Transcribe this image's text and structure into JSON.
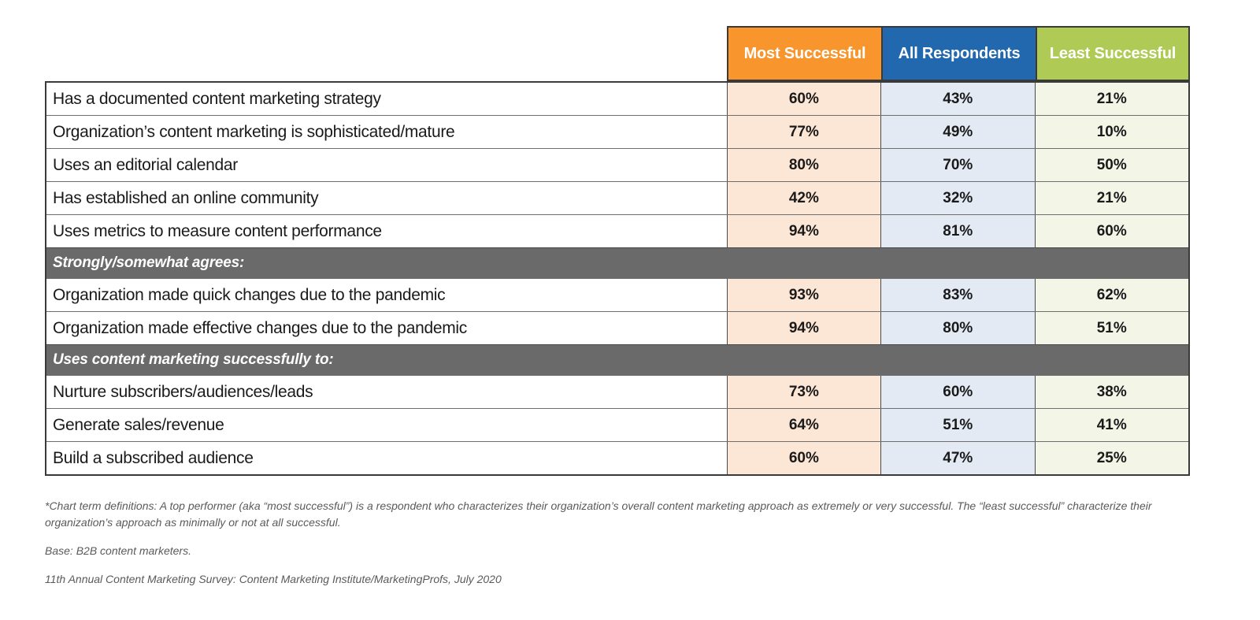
{
  "colors": {
    "header_orange": "#F8952D",
    "header_blue": "#2268AE",
    "header_green": "#AFCB56",
    "cell_orange_tint": "#FCE6D5",
    "cell_blue_tint": "#E3EAF4",
    "cell_green_tint": "#F3F5E7",
    "section_band_gray": "#6A6A6A"
  },
  "table": {
    "columns": [
      "Most Successful",
      "All Respondents",
      "Least Successful"
    ],
    "rows": [
      {
        "type": "data",
        "label": "Has a documented content marketing strategy",
        "values": [
          "60%",
          "43%",
          "21%"
        ]
      },
      {
        "type": "data",
        "label": "Organization’s content marketing is sophisticated/mature",
        "values": [
          "77%",
          "49%",
          "10%"
        ]
      },
      {
        "type": "data",
        "label": "Uses an editorial calendar",
        "values": [
          "80%",
          "70%",
          "50%"
        ]
      },
      {
        "type": "data",
        "label": "Has established an online community",
        "values": [
          "42%",
          "32%",
          "21%"
        ]
      },
      {
        "type": "data",
        "label": "Uses metrics to measure content performance",
        "values": [
          "94%",
          "81%",
          "60%"
        ]
      },
      {
        "type": "section",
        "label": "Strongly/somewhat agrees:"
      },
      {
        "type": "data",
        "label": "Organization made quick changes due to the pandemic",
        "values": [
          "93%",
          "83%",
          "62%"
        ]
      },
      {
        "type": "data",
        "label": "Organization made effective changes due to the pandemic",
        "values": [
          "94%",
          "80%",
          "51%"
        ]
      },
      {
        "type": "section",
        "label": "Uses content marketing successfully to:"
      },
      {
        "type": "data",
        "label": "Nurture subscribers/audiences/leads",
        "values": [
          "73%",
          "60%",
          "38%"
        ]
      },
      {
        "type": "data",
        "label": "Generate sales/revenue",
        "values": [
          "64%",
          "51%",
          "41%"
        ]
      },
      {
        "type": "data",
        "label": "Build a subscribed audience",
        "values": [
          "60%",
          "47%",
          "25%"
        ]
      }
    ]
  },
  "footnotes": {
    "definitions": "*Chart term definitions: A top performer (aka “most successful”) is a respondent who characterizes their organization’s overall content marketing approach as extremely or very successful. The “least successful” characterize their organization’s approach as minimally or not at all successful.",
    "base": "Base: B2B content marketers.",
    "source": "11th Annual Content Marketing Survey: Content Marketing Institute/MarketingProfs, July 2020"
  },
  "chart_data": {
    "type": "table",
    "title": "",
    "categories": [
      "Has a documented content marketing strategy",
      "Organization’s content marketing is sophisticated/mature",
      "Uses an editorial calendar",
      "Has established an online community",
      "Uses metrics to measure content performance",
      "Organization made quick changes due to the pandemic",
      "Organization made effective changes due to the pandemic",
      "Nurture subscribers/audiences/leads",
      "Generate sales/revenue",
      "Build a subscribed audience"
    ],
    "series": [
      {
        "name": "Most Successful",
        "values": [
          60,
          77,
          80,
          42,
          94,
          93,
          94,
          73,
          64,
          60
        ]
      },
      {
        "name": "All Respondents",
        "values": [
          43,
          49,
          70,
          32,
          81,
          83,
          80,
          60,
          51,
          47
        ]
      },
      {
        "name": "Least Successful",
        "values": [
          21,
          10,
          50,
          21,
          60,
          62,
          51,
          38,
          41,
          25
        ]
      }
    ],
    "section_headers": [
      {
        "label": "Strongly/somewhat agrees:",
        "before_category": "Organization made quick changes due to the pandemic"
      },
      {
        "label": "Uses content marketing successfully to:",
        "before_category": "Nurture subscribers/audiences/leads"
      }
    ],
    "units": "%",
    "layout": {
      "legend_position": "column-headers",
      "grid": "table-borders"
    }
  }
}
